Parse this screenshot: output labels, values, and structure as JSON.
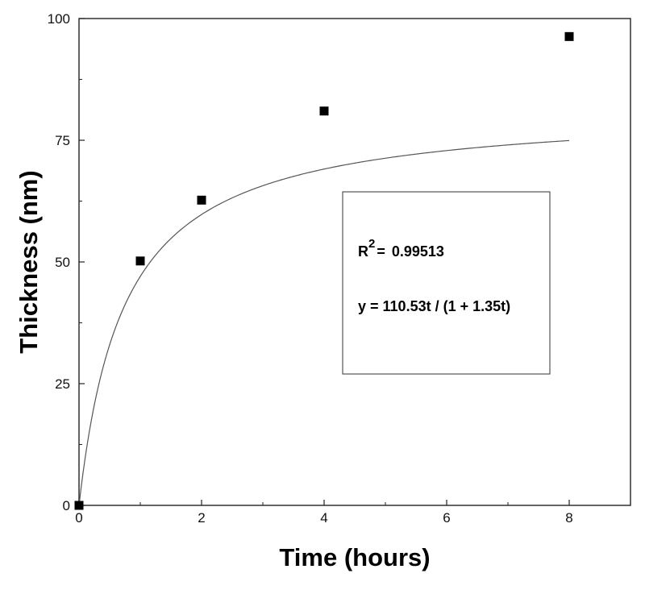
{
  "chart_data": {
    "type": "scatter",
    "title": "",
    "xlabel": "Time (hours)",
    "ylabel": "Thickness (nm)",
    "xlim": [
      0,
      9
    ],
    "ylim": [
      0,
      100
    ],
    "x_ticks": [
      0,
      2,
      4,
      6,
      8
    ],
    "y_ticks": [
      0,
      25,
      50,
      75,
      100
    ],
    "x_tick_labels": [
      "0",
      "2",
      "4",
      "6",
      "8"
    ],
    "y_tick_labels": [
      "0",
      "25",
      "50",
      "75",
      "100"
    ],
    "grid": false,
    "series": [
      {
        "type": "scatter",
        "marker": "square",
        "color": "#000000",
        "x": [
          0,
          1,
          2,
          4,
          8
        ],
        "y": [
          0,
          50.2,
          62.7,
          81.0,
          96.3
        ]
      },
      {
        "type": "line",
        "color": "#555555",
        "formula": "y = 110.53t / (1 + 1.35t)",
        "parameters": {
          "a": 110.53,
          "b": 1.35
        },
        "x_range": [
          0,
          8
        ]
      }
    ],
    "annotation": {
      "r2_label": "R",
      "r2_superscript": "2",
      "r2_equals": "=",
      "r2_value": "0.99513",
      "equation": "y = 110.53t / (1 + 1.35t)"
    }
  }
}
